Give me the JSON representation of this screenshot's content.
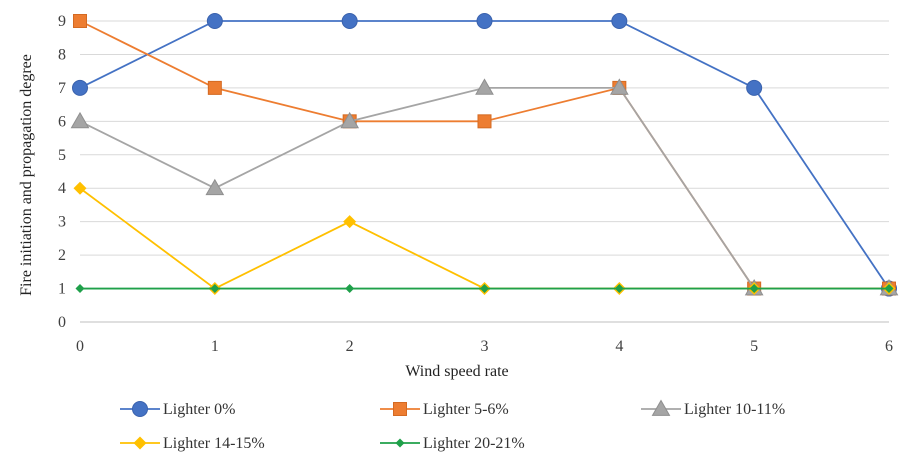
{
  "chart_data": {
    "type": "line",
    "title": "",
    "xlabel": "Wind speed rate",
    "ylabel": "Fire initiation and propagation degree",
    "x": [
      0,
      1,
      2,
      3,
      4,
      5,
      6
    ],
    "xlim": [
      0,
      6
    ],
    "ylim": [
      0,
      9
    ],
    "yticks": [
      0,
      1,
      2,
      3,
      4,
      5,
      6,
      7,
      8,
      9
    ],
    "grid": "horizontal",
    "legend_position": "bottom",
    "series": [
      {
        "name": "Lighter 0%",
        "values": [
          7,
          9,
          9,
          9,
          9,
          7,
          1
        ],
        "color": "#4472C4",
        "marker": "circle"
      },
      {
        "name": "Lighter 5-6%",
        "values": [
          9,
          7,
          6,
          6,
          7,
          1,
          1
        ],
        "color": "#ED7D31",
        "marker": "square"
      },
      {
        "name": "Lighter 10-11%",
        "values": [
          6,
          4,
          6,
          7,
          7,
          1,
          1
        ],
        "color": "#A5A5A5",
        "marker": "triangle"
      },
      {
        "name": "Lighter 14-15%",
        "values": [
          4,
          1,
          3,
          1,
          1,
          1,
          1
        ],
        "color": "#FFC000",
        "marker": "diamond"
      },
      {
        "name": "Lighter 20-21%",
        "values": [
          1,
          1,
          1,
          1,
          1,
          1,
          1
        ],
        "color": "#1FA04A",
        "marker": "diamond-small"
      }
    ]
  }
}
